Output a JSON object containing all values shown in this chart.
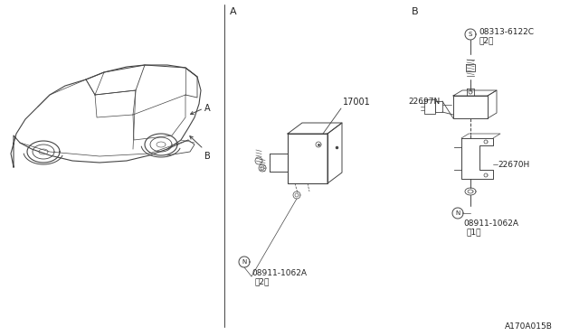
{
  "bg_color": "#ffffff",
  "fig_width": 6.4,
  "fig_height": 3.72,
  "dpi": 100,
  "ref_code": "A170A015B",
  "section_A_label": "A",
  "section_B_label": "B",
  "part_17001_label": "17001",
  "part_22697N_label": "22697N",
  "part_22670H_label": "22670H",
  "part_08911_A_label": "08911-1062A",
  "part_08911_A_qty": "（2）",
  "part_08313_label": "08313-6122C",
  "part_08313_qty": "（2）",
  "part_08911_B_label": "08911-1062A",
  "part_08911_B_qty": "（1）",
  "line_color": "#444444",
  "text_color": "#222222",
  "thin_line": 0.5,
  "med_line": 0.7
}
